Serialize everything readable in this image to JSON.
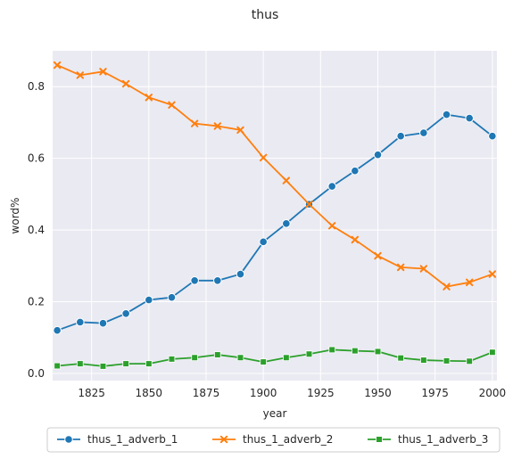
{
  "chart_data": {
    "type": "line",
    "title": "thus",
    "xlabel": "year",
    "ylabel": "word%",
    "xlim": [
      1808,
      2002
    ],
    "ylim": [
      -0.02,
      0.9
    ],
    "xticks": [
      1825,
      1850,
      1875,
      1900,
      1925,
      1950,
      1975,
      2000
    ],
    "xtick_labels": [
      "1825",
      "1850",
      "1875",
      "1900",
      "1925",
      "1950",
      "1975",
      "2000"
    ],
    "yticks": [
      0.0,
      0.2,
      0.4,
      0.6,
      0.8
    ],
    "ytick_labels": [
      "0.0",
      "0.2",
      "0.4",
      "0.6",
      "0.8"
    ],
    "grid": true,
    "legend_position": "bottom-center",
    "x": [
      1810,
      1820,
      1830,
      1840,
      1850,
      1860,
      1870,
      1880,
      1890,
      1900,
      1910,
      1920,
      1930,
      1940,
      1950,
      1960,
      1970,
      1980,
      1990,
      2000
    ],
    "series": [
      {
        "name": "thus_1_adverb_1",
        "color": "#1f77b4",
        "marker": "circle",
        "values": [
          0.12,
          0.143,
          0.14,
          0.167,
          0.205,
          0.212,
          0.259,
          0.259,
          0.277,
          0.367,
          0.418,
          0.472,
          0.522,
          0.565,
          0.61,
          0.662,
          0.671,
          0.722,
          0.712,
          0.662
        ]
      },
      {
        "name": "thus_1_adverb_2",
        "color": "#ff7f0e",
        "marker": "x",
        "values": [
          0.86,
          0.832,
          0.842,
          0.808,
          0.77,
          0.749,
          0.697,
          0.69,
          0.679,
          0.602,
          0.538,
          0.472,
          0.412,
          0.373,
          0.328,
          0.296,
          0.292,
          0.242,
          0.254,
          0.277
        ]
      },
      {
        "name": "thus_1_adverb_3",
        "color": "#2ca02c",
        "marker": "square",
        "values": [
          0.021,
          0.027,
          0.02,
          0.027,
          0.027,
          0.04,
          0.044,
          0.052,
          0.044,
          0.032,
          0.044,
          0.054,
          0.066,
          0.063,
          0.061,
          0.043,
          0.037,
          0.035,
          0.034,
          0.059
        ]
      }
    ]
  }
}
